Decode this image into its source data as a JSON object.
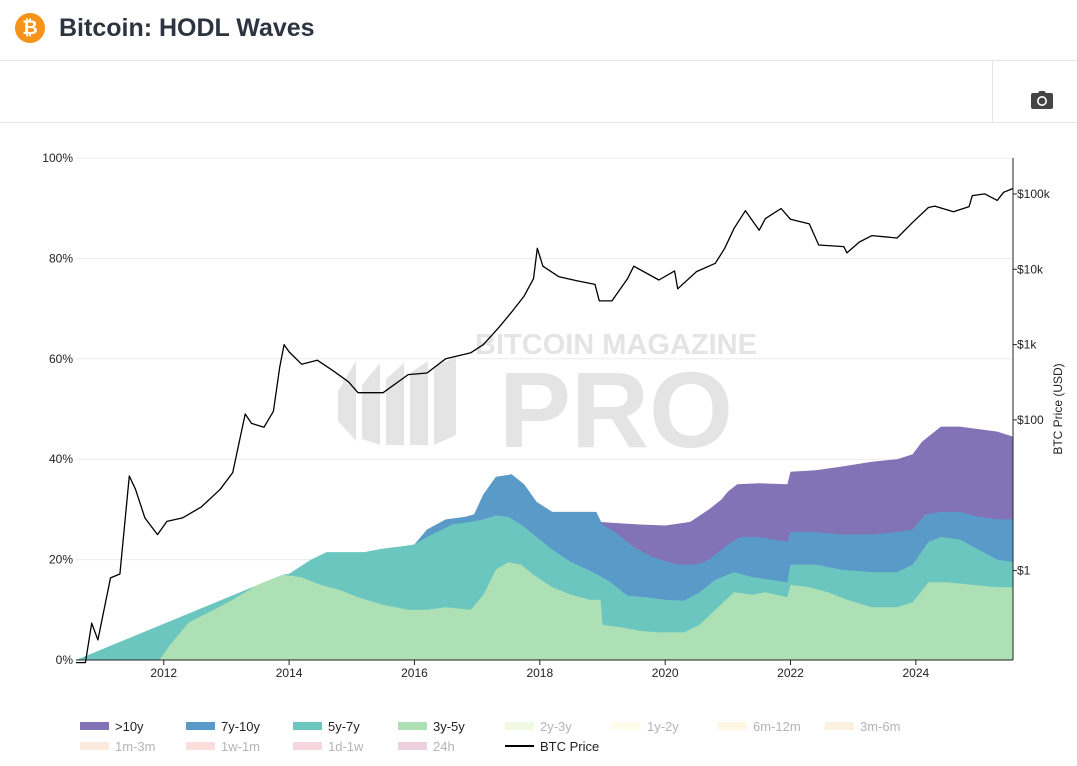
{
  "header": {
    "logo_symbol": "₿",
    "title": "Bitcoin: HODL Waves"
  },
  "toolbar": {
    "camera_icon": "camera-icon"
  },
  "chart_data": {
    "type": "area",
    "title": "Bitcoin: HODL Waves",
    "x_range": [
      2010.6,
      2025.55
    ],
    "x_ticks": [
      2012,
      2014,
      2016,
      2018,
      2020,
      2022,
      2024
    ],
    "x_tick_labels": [
      "2012",
      "2014",
      "2016",
      "2018",
      "2020",
      "2022",
      "2024"
    ],
    "y_left": {
      "range": [
        0,
        100
      ],
      "ticks": [
        0,
        20,
        40,
        60,
        80,
        100
      ],
      "tick_labels": [
        "0%",
        "20%",
        "40%",
        "60%",
        "80%",
        "100%"
      ]
    },
    "y_right": {
      "label": "BTC Price (USD)",
      "scale": "log",
      "range": [
        0.065,
        300000
      ],
      "ticks": [
        1,
        100,
        1000,
        10000,
        100000
      ],
      "tick_labels": [
        "$1",
        "$100",
        "$1k",
        "$10k",
        "$100k"
      ]
    },
    "watermark": [
      "BITCOIN MAGAZINE",
      "PRO"
    ],
    "series": [
      {
        "name": "3y-5y",
        "color": "#ade0b4",
        "points": [
          [
            2010.6,
            0
          ],
          [
            2011.93,
            0
          ],
          [
            2012.1,
            3
          ],
          [
            2012.4,
            7.5
          ],
          [
            2012.8,
            10
          ],
          [
            2013.1,
            12
          ],
          [
            2013.5,
            15
          ],
          [
            2013.9,
            17
          ],
          [
            2014.2,
            16.5
          ],
          [
            2014.5,
            15
          ],
          [
            2014.8,
            14
          ],
          [
            2015.1,
            12.5
          ],
          [
            2015.5,
            11
          ],
          [
            2015.9,
            10
          ],
          [
            2016.2,
            10
          ],
          [
            2016.5,
            10.5
          ],
          [
            2016.9,
            10
          ],
          [
            2017.1,
            13
          ],
          [
            2017.3,
            18
          ],
          [
            2017.5,
            19.5
          ],
          [
            2017.7,
            19
          ],
          [
            2017.9,
            17
          ],
          [
            2018.2,
            14.5
          ],
          [
            2018.5,
            13
          ],
          [
            2018.8,
            12
          ],
          [
            2018.97,
            12
          ],
          [
            2019.0,
            7
          ],
          [
            2019.3,
            6.5
          ],
          [
            2019.6,
            5.8
          ],
          [
            2019.9,
            5.5
          ],
          [
            2020.3,
            5.5
          ],
          [
            2020.55,
            7
          ],
          [
            2020.8,
            10
          ],
          [
            2021.1,
            13.5
          ],
          [
            2021.4,
            13
          ],
          [
            2021.6,
            13.5
          ],
          [
            2021.95,
            12.5
          ],
          [
            2022.0,
            15
          ],
          [
            2022.3,
            14.5
          ],
          [
            2022.6,
            13.5
          ],
          [
            2022.9,
            12
          ],
          [
            2023.3,
            10.5
          ],
          [
            2023.7,
            10.5
          ],
          [
            2023.95,
            11.5
          ],
          [
            2024.2,
            15.5
          ],
          [
            2024.5,
            15.5
          ],
          [
            2024.9,
            15
          ],
          [
            2025.3,
            14.5
          ],
          [
            2025.55,
            14.5
          ]
        ]
      },
      {
        "name": "5y-7y",
        "color": "#6cc6c0",
        "points": [
          [
            2010.6,
            0
          ],
          [
            2013.9,
            17
          ],
          [
            2014.0,
            17.2
          ],
          [
            2014.35,
            20
          ],
          [
            2014.6,
            21.5
          ],
          [
            2015.2,
            21.5
          ],
          [
            2015.5,
            22.2
          ],
          [
            2015.9,
            22.8
          ],
          [
            2016.0,
            23
          ],
          [
            2016.2,
            24.5
          ],
          [
            2016.6,
            27
          ],
          [
            2016.9,
            27.5
          ],
          [
            2017.1,
            28
          ],
          [
            2017.3,
            28.8
          ],
          [
            2017.5,
            28.5
          ],
          [
            2017.7,
            27
          ],
          [
            2017.9,
            25
          ],
          [
            2018.2,
            22
          ],
          [
            2018.5,
            19.5
          ],
          [
            2018.8,
            17.8
          ],
          [
            2019.1,
            15.8
          ],
          [
            2019.4,
            12.8
          ],
          [
            2019.7,
            12.5
          ],
          [
            2020.0,
            12
          ],
          [
            2020.3,
            11.8
          ],
          [
            2020.55,
            13.5
          ],
          [
            2020.8,
            16
          ],
          [
            2021.1,
            17.5
          ],
          [
            2021.4,
            16.5
          ],
          [
            2021.95,
            15.5
          ],
          [
            2022.0,
            19
          ],
          [
            2022.4,
            19
          ],
          [
            2022.8,
            18
          ],
          [
            2023.3,
            17.5
          ],
          [
            2023.7,
            17.5
          ],
          [
            2023.95,
            19
          ],
          [
            2024.2,
            23.5
          ],
          [
            2024.4,
            24.5
          ],
          [
            2024.7,
            24
          ],
          [
            2025.0,
            22
          ],
          [
            2025.3,
            20
          ],
          [
            2025.55,
            19.5
          ]
        ]
      },
      {
        "name": "7y-10y",
        "color": "#5a9ac8",
        "points": [
          [
            2010.6,
            0
          ],
          [
            2015.9,
            22.8
          ],
          [
            2016.0,
            23
          ],
          [
            2016.2,
            26
          ],
          [
            2016.5,
            28
          ],
          [
            2016.8,
            28.5
          ],
          [
            2016.95,
            29
          ],
          [
            2017.1,
            33
          ],
          [
            2017.3,
            36.5
          ],
          [
            2017.55,
            37
          ],
          [
            2017.75,
            35
          ],
          [
            2017.95,
            31.5
          ],
          [
            2018.2,
            29.5
          ],
          [
            2018.5,
            29.5
          ],
          [
            2018.9,
            29.5
          ],
          [
            2019.0,
            27
          ],
          [
            2019.2,
            25.5
          ],
          [
            2019.5,
            22.5
          ],
          [
            2019.8,
            20.5
          ],
          [
            2020.2,
            19
          ],
          [
            2020.5,
            19
          ],
          [
            2020.7,
            20
          ],
          [
            2021.0,
            23
          ],
          [
            2021.2,
            24.5
          ],
          [
            2021.5,
            24.5
          ],
          [
            2021.95,
            23.5
          ],
          [
            2022.0,
            25.5
          ],
          [
            2022.4,
            25.5
          ],
          [
            2022.8,
            25
          ],
          [
            2023.3,
            25
          ],
          [
            2023.7,
            25.5
          ],
          [
            2023.95,
            26
          ],
          [
            2024.15,
            29
          ],
          [
            2024.4,
            29.5
          ],
          [
            2024.7,
            29.5
          ],
          [
            2025.0,
            28.5
          ],
          [
            2025.3,
            28
          ],
          [
            2025.55,
            28
          ]
        ]
      },
      {
        "name": ">10y",
        "color": "#8173b5",
        "points": [
          [
            2010.6,
            0
          ],
          [
            2018.9,
            29.5
          ],
          [
            2018.95,
            27.5
          ],
          [
            2019.2,
            27.3
          ],
          [
            2019.6,
            27
          ],
          [
            2020.0,
            26.8
          ],
          [
            2020.4,
            27.5
          ],
          [
            2020.7,
            30
          ],
          [
            2020.9,
            32
          ],
          [
            2021.0,
            33.5
          ],
          [
            2021.15,
            35
          ],
          [
            2021.5,
            35.2
          ],
          [
            2021.95,
            35
          ],
          [
            2022.0,
            37.5
          ],
          [
            2022.4,
            37.8
          ],
          [
            2022.8,
            38.5
          ],
          [
            2023.3,
            39.5
          ],
          [
            2023.7,
            40
          ],
          [
            2023.95,
            41
          ],
          [
            2024.1,
            43.5
          ],
          [
            2024.25,
            45
          ],
          [
            2024.4,
            46.5
          ],
          [
            2024.7,
            46.5
          ],
          [
            2025.0,
            46
          ],
          [
            2025.3,
            45.5
          ],
          [
            2025.55,
            44.5
          ]
        ]
      }
    ],
    "btc_price": {
      "name": "BTC Price",
      "color": "#000000",
      "points": [
        [
          2010.6,
          0.06
        ],
        [
          2010.75,
          0.06
        ],
        [
          2010.85,
          0.2
        ],
        [
          2010.95,
          0.12
        ],
        [
          2011.15,
          0.8
        ],
        [
          2011.3,
          0.9
        ],
        [
          2011.45,
          18
        ],
        [
          2011.55,
          12
        ],
        [
          2011.7,
          5
        ],
        [
          2011.9,
          3
        ],
        [
          2012.05,
          4.5
        ],
        [
          2012.3,
          5
        ],
        [
          2012.6,
          7
        ],
        [
          2012.9,
          12
        ],
        [
          2013.1,
          20
        ],
        [
          2013.3,
          120
        ],
        [
          2013.4,
          90
        ],
        [
          2013.6,
          80
        ],
        [
          2013.75,
          130
        ],
        [
          2013.85,
          500
        ],
        [
          2013.92,
          1000
        ],
        [
          2014.0,
          800
        ],
        [
          2014.2,
          550
        ],
        [
          2014.45,
          620
        ],
        [
          2014.7,
          450
        ],
        [
          2014.95,
          320
        ],
        [
          2015.1,
          230
        ],
        [
          2015.5,
          230
        ],
        [
          2015.9,
          400
        ],
        [
          2016.2,
          420
        ],
        [
          2016.5,
          650
        ],
        [
          2016.9,
          780
        ],
        [
          2017.1,
          1000
        ],
        [
          2017.35,
          1700
        ],
        [
          2017.55,
          2700
        ],
        [
          2017.75,
          4400
        ],
        [
          2017.9,
          7500
        ],
        [
          2017.96,
          19000
        ],
        [
          2018.05,
          11000
        ],
        [
          2018.3,
          8000
        ],
        [
          2018.6,
          7000
        ],
        [
          2018.88,
          6300
        ],
        [
          2018.95,
          3800
        ],
        [
          2019.15,
          3800
        ],
        [
          2019.4,
          7500
        ],
        [
          2019.5,
          11000
        ],
        [
          2019.9,
          7200
        ],
        [
          2020.15,
          9500
        ],
        [
          2020.2,
          5500
        ],
        [
          2020.5,
          9300
        ],
        [
          2020.8,
          12000
        ],
        [
          2020.95,
          19000
        ],
        [
          2021.1,
          35000
        ],
        [
          2021.28,
          60000
        ],
        [
          2021.5,
          33000
        ],
        [
          2021.6,
          47000
        ],
        [
          2021.85,
          64000
        ],
        [
          2022.0,
          46000
        ],
        [
          2022.3,
          40000
        ],
        [
          2022.45,
          21000
        ],
        [
          2022.85,
          20000
        ],
        [
          2022.9,
          16500
        ],
        [
          2023.1,
          23000
        ],
        [
          2023.3,
          28000
        ],
        [
          2023.7,
          26000
        ],
        [
          2023.95,
          42000
        ],
        [
          2024.2,
          66000
        ],
        [
          2024.3,
          69000
        ],
        [
          2024.6,
          58000
        ],
        [
          2024.85,
          68000
        ],
        [
          2024.9,
          95000
        ],
        [
          2025.1,
          100000
        ],
        [
          2025.3,
          82000
        ],
        [
          2025.4,
          105000
        ],
        [
          2025.55,
          118000
        ]
      ]
    },
    "legend": {
      "placement": "bottom",
      "items": [
        {
          "label": ">10y",
          "color": "#8173b5",
          "kind": "area",
          "dimmed": false
        },
        {
          "label": "7y-10y",
          "color": "#5a9ac8",
          "kind": "area",
          "dimmed": false
        },
        {
          "label": "5y-7y",
          "color": "#6cc6c0",
          "kind": "area",
          "dimmed": false
        },
        {
          "label": "3y-5y",
          "color": "#ade0b4",
          "kind": "area",
          "dimmed": false
        },
        {
          "label": "2y-3y",
          "color": "#e6f2cc",
          "kind": "area",
          "dimmed": true
        },
        {
          "label": "1y-2y",
          "color": "#fbf7d8",
          "kind": "area",
          "dimmed": true
        },
        {
          "label": "6m-12m",
          "color": "#fdf0cc",
          "kind": "area",
          "dimmed": true
        },
        {
          "label": "3m-6m",
          "color": "#fde4c6",
          "kind": "area",
          "dimmed": true
        },
        {
          "label": "1m-3m",
          "color": "#fcd8c4",
          "kind": "area",
          "dimmed": true
        },
        {
          "label": "1w-1m",
          "color": "#f8c3be",
          "kind": "area",
          "dimmed": true
        },
        {
          "label": "1d-1w",
          "color": "#f0b5c4",
          "kind": "area",
          "dimmed": true
        },
        {
          "label": "24h",
          "color": "#dea9c3",
          "kind": "area",
          "dimmed": true
        },
        {
          "label": "BTC Price",
          "color": "#000000",
          "kind": "line",
          "dimmed": false
        }
      ]
    }
  }
}
